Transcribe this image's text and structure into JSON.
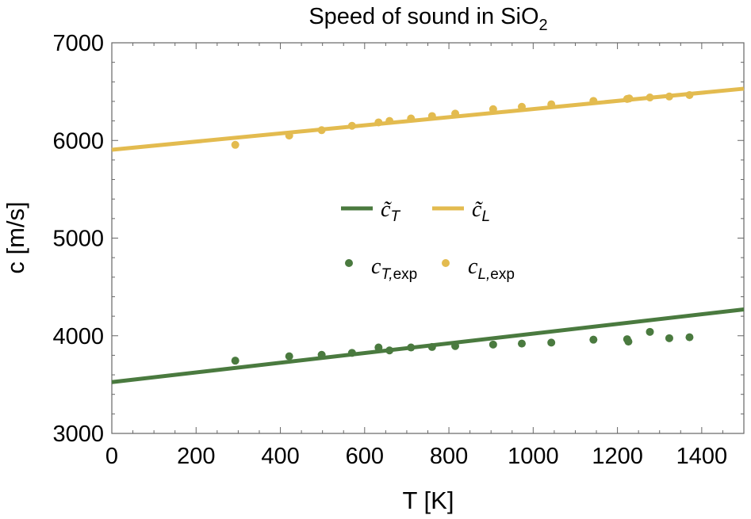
{
  "chart_data": {
    "type": "scatter",
    "title": {
      "text": "Speed of sound in SiO",
      "sub": "2"
    },
    "xlabel": "T [K]",
    "ylabel": "c [m/s]",
    "xlim": [
      0,
      1500
    ],
    "ylim": [
      3000,
      7000
    ],
    "x_ticks": [
      0,
      200,
      400,
      600,
      800,
      1000,
      1200,
      1400
    ],
    "y_ticks": [
      3000,
      4000,
      5000,
      6000,
      7000
    ],
    "x_tick_labels": [
      "0",
      "200",
      "400",
      "600",
      "800",
      "1000",
      "1200",
      "1400"
    ],
    "y_tick_labels": [
      "3000",
      "4000",
      "5000",
      "6000",
      "7000"
    ],
    "colors": {
      "transverse": "#4a7a3f",
      "longitudinal": "#e3bb4f"
    },
    "fit_lines": [
      {
        "name": "c̃_T",
        "color": "#4a7a3f",
        "x": [
          0,
          1500
        ],
        "y": [
          3525,
          4270
        ]
      },
      {
        "name": "c̃_L",
        "color": "#e3bb4f",
        "x": [
          0,
          1500
        ],
        "y": [
          5905,
          6530
        ]
      }
    ],
    "series": [
      {
        "name": "c_T,exp",
        "color": "#4a7a3f",
        "x": [
          293,
          421,
          498,
          570,
          633,
          659,
          710,
          760,
          815,
          905,
          973,
          1043,
          1143,
          1223,
          1226,
          1277,
          1323,
          1371
        ],
        "y": [
          3745,
          3790,
          3805,
          3825,
          3880,
          3850,
          3880,
          3885,
          3895,
          3910,
          3920,
          3930,
          3960,
          3965,
          3940,
          4040,
          3975,
          3985
        ]
      },
      {
        "name": "c_L,exp",
        "color": "#e3bb4f",
        "x": [
          293,
          421,
          498,
          570,
          633,
          659,
          710,
          760,
          815,
          905,
          973,
          1043,
          1143,
          1223,
          1228,
          1277,
          1323,
          1371
        ],
        "y": [
          5955,
          6050,
          6105,
          6150,
          6185,
          6200,
          6225,
          6250,
          6275,
          6320,
          6345,
          6370,
          6405,
          6425,
          6430,
          6440,
          6450,
          6465
        ]
      }
    ],
    "legend": {
      "placement": "center",
      "lines": [
        {
          "base": "c̃",
          "sub": "T",
          "color": "#4a7a3f"
        },
        {
          "base": "c̃",
          "sub": "L",
          "color": "#e3bb4f"
        }
      ],
      "points": [
        {
          "base": "c",
          "sub": "T,",
          "sub2": "exp",
          "color": "#4a7a3f"
        },
        {
          "base": "c",
          "sub": "L,",
          "sub2": "exp",
          "color": "#e3bb4f"
        }
      ]
    }
  }
}
